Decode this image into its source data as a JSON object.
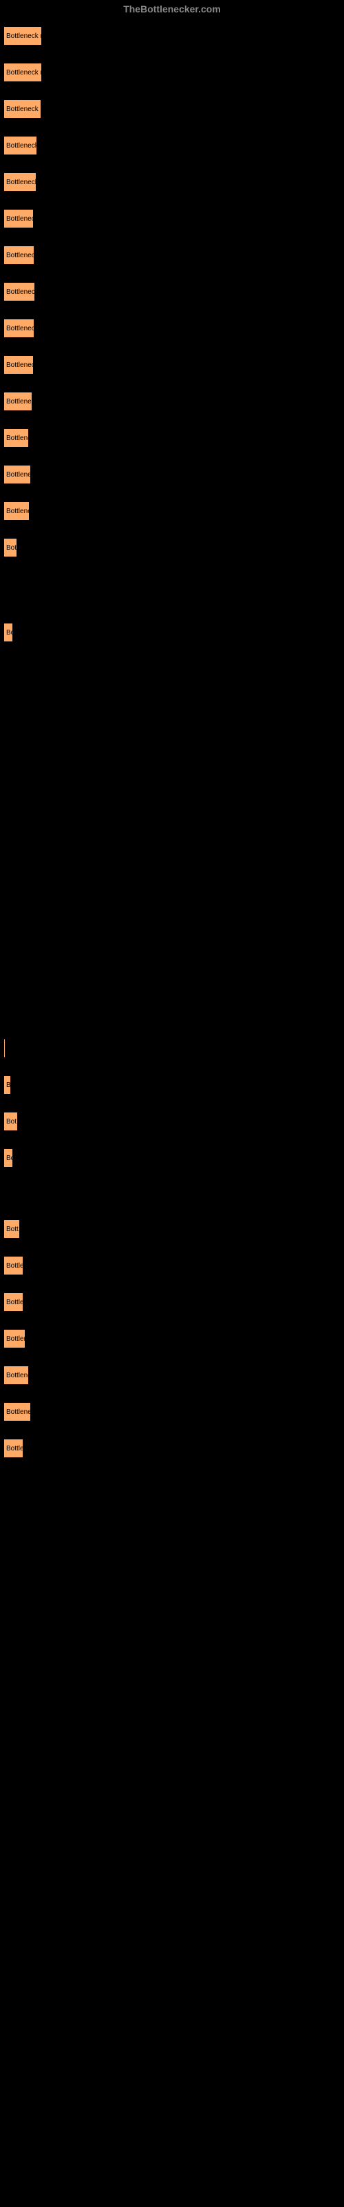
{
  "header": {
    "title": "TheBottlenecker.com"
  },
  "chart": {
    "type": "bar",
    "bar_color": "#ffaa66",
    "bar_border_color": "#000000",
    "text_color": "#000000",
    "background_color": "#000000",
    "header_color": "#888888",
    "bars": [
      {
        "label": "Bottleneck re",
        "width": 56
      },
      {
        "label": "Bottleneck re",
        "width": 56
      },
      {
        "label": "Bottleneck o",
        "width": 55
      },
      {
        "label": "Bottleneck",
        "width": 49
      },
      {
        "label": "Bottleneck",
        "width": 48
      },
      {
        "label": "Bottleneck",
        "width": 44
      },
      {
        "label": "Bottleneck",
        "width": 45
      },
      {
        "label": "Bottleneck",
        "width": 46
      },
      {
        "label": "Bottleneck",
        "width": 45
      },
      {
        "label": "Bottleneck",
        "width": 44
      },
      {
        "label": "Bottlenec",
        "width": 42
      },
      {
        "label": "Bottlene",
        "width": 37
      },
      {
        "label": "Bottlenec",
        "width": 40
      },
      {
        "label": "Bottlene",
        "width": 38
      },
      {
        "label": "Bot",
        "width": 20
      },
      {
        "label": "",
        "width": 0,
        "spacer_height": 70
      },
      {
        "label": "Bo",
        "width": 14
      },
      {
        "label": "",
        "width": 0,
        "spacer_height": 550
      },
      {
        "label": "",
        "width": 3
      },
      {
        "label": "B",
        "width": 11
      },
      {
        "label": "Bot",
        "width": 21
      },
      {
        "label": "Bo",
        "width": 14
      },
      {
        "label": "",
        "width": 0,
        "spacer_height": 50
      },
      {
        "label": "Bott",
        "width": 24
      },
      {
        "label": "Bottle",
        "width": 29
      },
      {
        "label": "Bottle",
        "width": 29
      },
      {
        "label": "Bottler",
        "width": 32
      },
      {
        "label": "Bottlene",
        "width": 37
      },
      {
        "label": "Bottlene",
        "width": 40
      },
      {
        "label": "Bottle",
        "width": 29
      }
    ]
  }
}
